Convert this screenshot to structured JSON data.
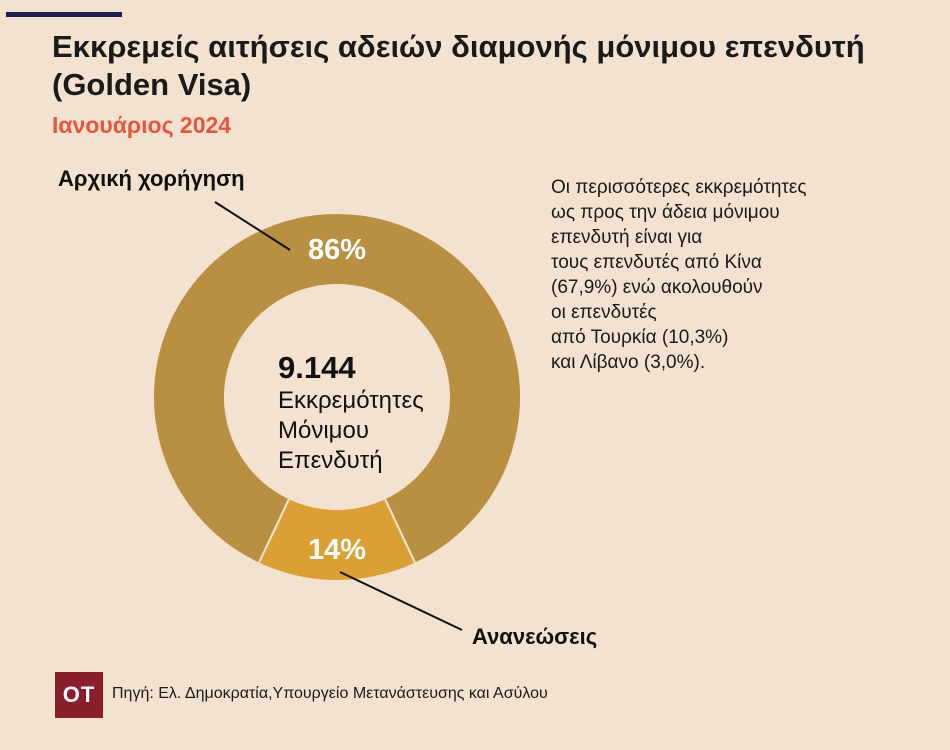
{
  "title": "Εκκρεμείς αιτήσεις αδειών διαμονής μόνιμου επενδυτή (Golden Visa)",
  "subtitle": "Ιανουάριος 2024",
  "center": {
    "total": "9.144",
    "lines": [
      "Εκκρεμότητες",
      "Μόνιμου",
      "Επενδυτή"
    ]
  },
  "note_lines": [
    "Οι περισσότερες εκκρεμότητες",
    "ως προς την άδεια μόνιμου",
    "επενδυτή είναι για",
    "τους επενδυτές από Κίνα",
    "(67,9%) ενώ ακολουθούν",
    "οι επενδυτές",
    "από Τουρκία (10,3%)",
    "και Λίβανο (3,0%)."
  ],
  "logo": "OT",
  "source": "Πηγή: Ελ. Δημοκρατία,Υπουργείο Μετανάστευσης και Ασύλου",
  "colors": {
    "background": "#f4e2d0",
    "accent": "#e8553f",
    "topbar": "#1c1f4d",
    "logo": "#8a1e2c"
  },
  "chart_data": {
    "type": "pie",
    "variant": "donut",
    "total": 9144,
    "slices": [
      {
        "label": "Αρχική χορήγηση",
        "value": 86,
        "value_label": "86%",
        "color": "#b98f41"
      },
      {
        "label": "Ανανεώσεις",
        "value": 14,
        "value_label": "14%",
        "color": "#dba033"
      }
    ]
  }
}
